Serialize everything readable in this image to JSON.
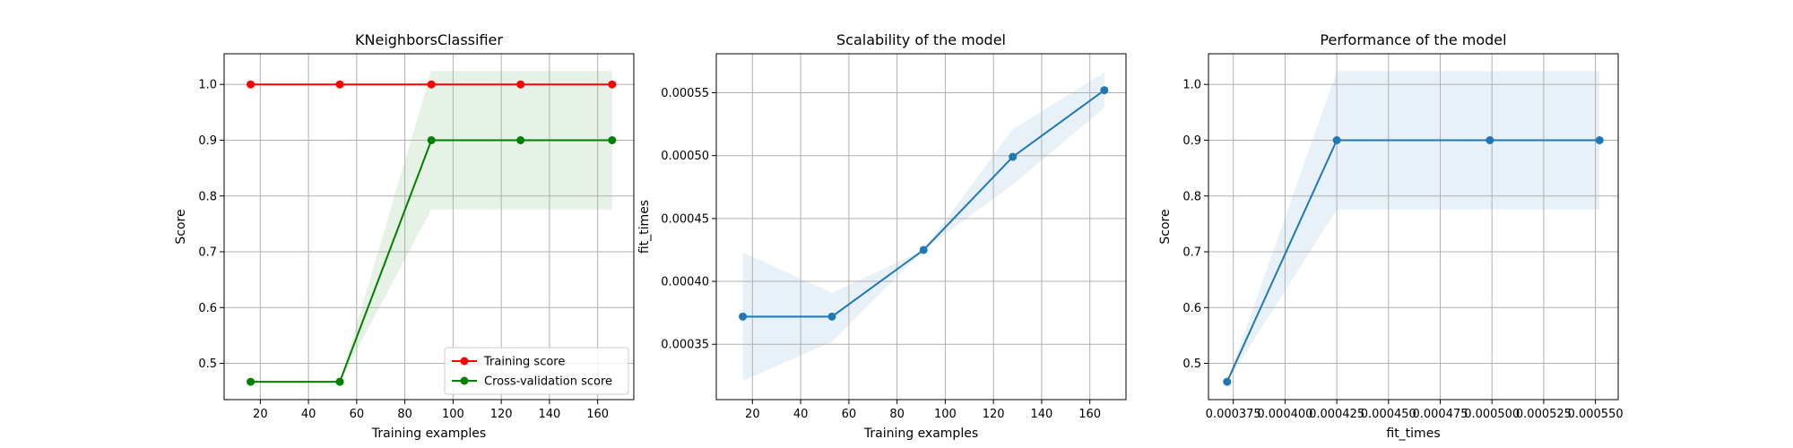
{
  "chart_data": [
    {
      "type": "line",
      "title": "KNeighborsClassifier",
      "xlabel": "Training examples",
      "ylabel": "Score",
      "xlim": [
        5,
        175
      ],
      "ylim": [
        0.435,
        1.055
      ],
      "xticks": [
        20,
        40,
        60,
        80,
        100,
        120,
        140,
        160
      ],
      "yticks": [
        0.5,
        0.6,
        0.7,
        0.8,
        0.9,
        1.0
      ],
      "grid": true,
      "legend_position": "lower-right",
      "x": [
        16,
        53,
        91,
        128,
        166
      ],
      "series": [
        {
          "name": "Training score",
          "values": [
            1.0,
            1.0,
            1.0,
            1.0,
            1.0
          ],
          "color": "#ff0000",
          "band_lower": [
            1.0,
            1.0,
            1.0,
            1.0,
            1.0
          ],
          "band_upper": [
            1.0,
            1.0,
            1.0,
            1.0,
            1.0
          ]
        },
        {
          "name": "Cross-validation score",
          "values": [
            0.467,
            0.467,
            0.9,
            0.9,
            0.9
          ],
          "color": "#008000",
          "band_lower": [
            0.467,
            0.467,
            0.776,
            0.776,
            0.776
          ],
          "band_upper": [
            0.467,
            0.467,
            1.024,
            1.024,
            1.024
          ]
        }
      ]
    },
    {
      "type": "line",
      "title": "Scalability of the model",
      "xlabel": "Training examples",
      "ylabel": "fit_times",
      "xlim": [
        5,
        175
      ],
      "ylim": [
        0.000306,
        0.000581
      ],
      "xticks": [
        20,
        40,
        60,
        80,
        100,
        120,
        140,
        160
      ],
      "yticks": [
        0.00035,
        0.0004,
        0.00045,
        0.0005,
        0.00055
      ],
      "ytick_labels": [
        "0.00035",
        "0.00040",
        "0.00045",
        "0.00050",
        "0.00055"
      ],
      "grid": true,
      "x": [
        16,
        53,
        91,
        128,
        166
      ],
      "series": [
        {
          "values": [
            0.000372,
            0.000372,
            0.000425,
            0.000499,
            0.000552
          ],
          "color": "#1f77b4",
          "band_lower": [
            0.000321,
            0.000352,
            0.000425,
            0.000477,
            0.000538
          ],
          "band_upper": [
            0.000423,
            0.000391,
            0.000425,
            0.000521,
            0.000566
          ]
        }
      ]
    },
    {
      "type": "line",
      "title": "Performance of the model",
      "xlabel": "fit_times",
      "ylabel": "Score",
      "xlim": [
        0.000363,
        0.000561
      ],
      "ylim": [
        0.435,
        1.055
      ],
      "xticks": [
        0.000375,
        0.0004,
        0.000425,
        0.00045,
        0.000475,
        0.0005,
        0.000525,
        0.00055
      ],
      "xtick_labels": [
        "0.000375",
        "0.000400",
        "0.000425",
        "0.000450",
        "0.000475",
        "0.000500",
        "0.000525",
        "0.000550"
      ],
      "yticks": [
        0.5,
        0.6,
        0.7,
        0.8,
        0.9,
        1.0
      ],
      "grid": true,
      "x": [
        0.000372,
        0.000425,
        0.000499,
        0.000552
      ],
      "series": [
        {
          "values": [
            0.467,
            0.9,
            0.9,
            0.9
          ],
          "color": "#1f77b4",
          "band_lower": [
            0.467,
            0.776,
            0.776,
            0.776
          ],
          "band_upper": [
            0.467,
            1.024,
            1.024,
            1.024
          ]
        }
      ]
    }
  ]
}
